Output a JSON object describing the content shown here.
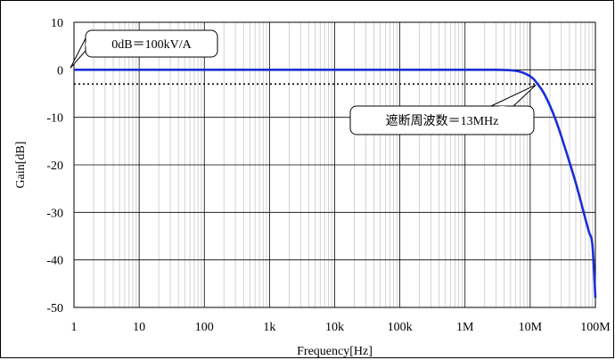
{
  "chart_data": {
    "type": "line",
    "xscale": "log",
    "xlim": [
      1,
      100000000
    ],
    "ylim": [
      -50,
      10
    ],
    "xlabel": "Frequency[Hz]",
    "ylabel": "Gain[dB]",
    "x_tick_labels": [
      "1",
      "10",
      "100",
      "1k",
      "10k",
      "100k",
      "1M",
      "10M",
      "100M"
    ],
    "y_ticks": [
      10,
      0,
      -10,
      -20,
      -30,
      -40,
      -50
    ],
    "grid": true,
    "series": [
      {
        "color": "#1a2ed6",
        "x": [
          1,
          100,
          10000,
          1000000,
          3000000,
          5000000,
          7000000,
          9000000,
          11000000,
          13000000,
          16000000,
          20000000,
          25000000,
          30000000,
          40000000,
          50000000,
          60000000,
          70000000,
          80000000,
          90000000,
          100000000
        ],
        "y": [
          0,
          0,
          0,
          0,
          0,
          -0.1,
          -0.4,
          -1.0,
          -1.8,
          -3.0,
          -4.8,
          -7.5,
          -10.8,
          -14.0,
          -19.4,
          -23.8,
          -27.8,
          -31.3,
          -34.2,
          -36.8,
          -48
        ]
      }
    ],
    "reference_lines": [
      {
        "y": -3,
        "style": "dotted",
        "color": "#000000"
      }
    ],
    "annotations": [
      {
        "text": "0dB＝100kV/A",
        "point_x": 1,
        "point_y": 0
      },
      {
        "text": "遮断周波数＝13MHz",
        "point_x": 13000000,
        "point_y": -3
      }
    ]
  }
}
